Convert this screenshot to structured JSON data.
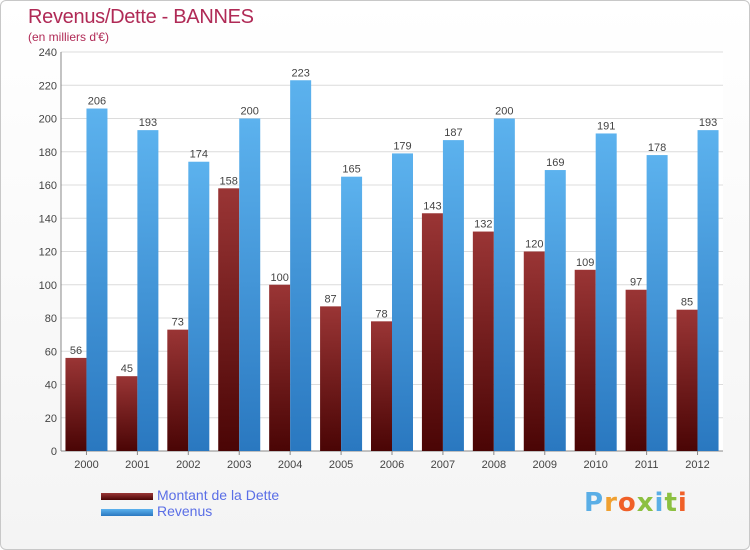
{
  "header": {
    "title": "Revenus/Dette - BANNES",
    "subtitle": "(en milliers d'€)"
  },
  "brand": {
    "letters": [
      "P",
      "r",
      "o",
      "x",
      "i",
      "t",
      "i"
    ],
    "colors": [
      "#5aaee6",
      "#f0a030",
      "#f06028",
      "#8cc040",
      "#5aaee6",
      "#8cc040",
      "#f06028"
    ]
  },
  "chart_data": {
    "type": "bar",
    "title": "Revenus/Dette - BANNES",
    "subtitle": "(en milliers d'€)",
    "categories": [
      "2000",
      "2001",
      "2002",
      "2003",
      "2004",
      "2005",
      "2006",
      "2007",
      "2008",
      "2009",
      "2010",
      "2011",
      "2012"
    ],
    "series": [
      {
        "name": "Montant de la Dette",
        "color": "#7a1515",
        "values": [
          56,
          45,
          73,
          158,
          100,
          87,
          78,
          143,
          132,
          120,
          109,
          97,
          85
        ]
      },
      {
        "name": "Revenus",
        "color": "#4aa3e6",
        "values": [
          206,
          193,
          174,
          200,
          223,
          165,
          179,
          187,
          200,
          169,
          191,
          178,
          193
        ]
      }
    ],
    "ylim": [
      0,
      240
    ],
    "yticks": [
      0,
      20,
      40,
      60,
      80,
      100,
      120,
      140,
      160,
      180,
      200,
      220,
      240
    ],
    "grid": true,
    "legend_position": "bottom-left"
  }
}
